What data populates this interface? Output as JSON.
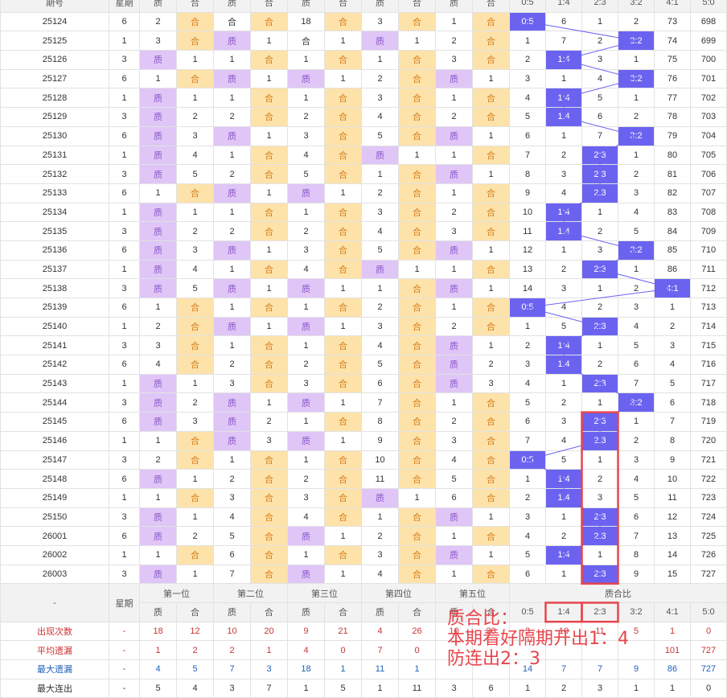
{
  "header_row": {
    "period": "期号",
    "weekday": "星期",
    "cols": [
      "质",
      "合",
      "质",
      "合",
      "质",
      "合",
      "质",
      "合",
      "质",
      "合"
    ],
    "ratios": [
      "0:5",
      "1:4",
      "2:3",
      "3:2",
      "4:1",
      "5:0"
    ]
  },
  "rows": [
    {
      "id": "25124",
      "w": "6",
      "pos": [
        "2",
        "合",
        "合",
        "合",
        "18",
        "合",
        "3",
        "合",
        "1",
        "合"
      ],
      "r": [
        "0:5",
        "6",
        "1",
        "2",
        "73",
        "698"
      ],
      "hl": 0
    },
    {
      "id": "25125",
      "w": "1",
      "pos": [
        "3",
        "合",
        "质",
        "1",
        "合",
        "1",
        "质",
        "1",
        "2",
        "合"
      ],
      "r": [
        "1",
        "7",
        "2",
        "3:2",
        "74",
        "699"
      ],
      "hl": 3
    },
    {
      "id": "25126",
      "w": "3",
      "pos": [
        "质",
        "1",
        "1",
        "合",
        "1",
        "合",
        "1",
        "合",
        "3",
        "合"
      ],
      "r": [
        "2",
        "1:4",
        "3",
        "1",
        "75",
        "700"
      ],
      "hl": 1
    },
    {
      "id": "25127",
      "w": "6",
      "pos": [
        "1",
        "合",
        "质",
        "1",
        "质",
        "1",
        "2",
        "合",
        "质",
        "1"
      ],
      "r": [
        "3",
        "1",
        "4",
        "3:2",
        "76",
        "701"
      ],
      "hl": 3
    },
    {
      "id": "25128",
      "w": "1",
      "pos": [
        "质",
        "1",
        "1",
        "合",
        "1",
        "合",
        "3",
        "合",
        "1",
        "合"
      ],
      "r": [
        "4",
        "1:4",
        "5",
        "1",
        "77",
        "702"
      ],
      "hl": 1
    },
    {
      "id": "25129",
      "w": "3",
      "pos": [
        "质",
        "2",
        "2",
        "合",
        "2",
        "合",
        "4",
        "合",
        "2",
        "合"
      ],
      "r": [
        "5",
        "1:4",
        "6",
        "2",
        "78",
        "703"
      ],
      "hl": 1
    },
    {
      "id": "25130",
      "w": "6",
      "pos": [
        "质",
        "3",
        "质",
        "1",
        "3",
        "合",
        "5",
        "合",
        "质",
        "1"
      ],
      "r": [
        "6",
        "1",
        "7",
        "3:2",
        "79",
        "704"
      ],
      "hl": 3
    },
    {
      "id": "25131",
      "w": "1",
      "pos": [
        "质",
        "4",
        "1",
        "合",
        "4",
        "合",
        "质",
        "1",
        "1",
        "合"
      ],
      "r": [
        "7",
        "2",
        "2:3",
        "1",
        "80",
        "705"
      ],
      "hl": 2
    },
    {
      "id": "25132",
      "w": "3",
      "pos": [
        "质",
        "5",
        "2",
        "合",
        "5",
        "合",
        "1",
        "合",
        "质",
        "1"
      ],
      "r": [
        "8",
        "3",
        "2:3",
        "2",
        "81",
        "706"
      ],
      "hl": 2
    },
    {
      "id": "25133",
      "w": "6",
      "pos": [
        "1",
        "合",
        "质",
        "1",
        "质",
        "1",
        "2",
        "合",
        "1",
        "合"
      ],
      "r": [
        "9",
        "4",
        "2:3",
        "3",
        "82",
        "707"
      ],
      "hl": 2
    },
    {
      "id": "25134",
      "w": "1",
      "pos": [
        "质",
        "1",
        "1",
        "合",
        "1",
        "合",
        "3",
        "合",
        "2",
        "合"
      ],
      "r": [
        "10",
        "1:4",
        "1",
        "4",
        "83",
        "708"
      ],
      "hl": 1
    },
    {
      "id": "25135",
      "w": "3",
      "pos": [
        "质",
        "2",
        "2",
        "合",
        "2",
        "合",
        "4",
        "合",
        "3",
        "合"
      ],
      "r": [
        "11",
        "1:4",
        "2",
        "5",
        "84",
        "709"
      ],
      "hl": 1
    },
    {
      "id": "25136",
      "w": "6",
      "pos": [
        "质",
        "3",
        "质",
        "1",
        "3",
        "合",
        "5",
        "合",
        "质",
        "1"
      ],
      "r": [
        "12",
        "1",
        "3",
        "3:2",
        "85",
        "710"
      ],
      "hl": 3
    },
    {
      "id": "25137",
      "w": "1",
      "pos": [
        "质",
        "4",
        "1",
        "合",
        "4",
        "合",
        "质",
        "1",
        "1",
        "合"
      ],
      "r": [
        "13",
        "2",
        "2:3",
        "1",
        "86",
        "711"
      ],
      "hl": 2
    },
    {
      "id": "25138",
      "w": "3",
      "pos": [
        "质",
        "5",
        "质",
        "1",
        "质",
        "1",
        "1",
        "合",
        "质",
        "1"
      ],
      "r": [
        "14",
        "3",
        "1",
        "2",
        "4:1",
        "712"
      ],
      "hl": 4
    },
    {
      "id": "25139",
      "w": "6",
      "pos": [
        "1",
        "合",
        "1",
        "合",
        "1",
        "合",
        "2",
        "合",
        "1",
        "合"
      ],
      "r": [
        "0:5",
        "4",
        "2",
        "3",
        "1",
        "713"
      ],
      "hl": 0
    },
    {
      "id": "25140",
      "w": "1",
      "pos": [
        "2",
        "合",
        "质",
        "1",
        "质",
        "1",
        "3",
        "合",
        "2",
        "合"
      ],
      "r": [
        "1",
        "5",
        "2:3",
        "4",
        "2",
        "714"
      ],
      "hl": 2
    },
    {
      "id": "25141",
      "w": "3",
      "pos": [
        "3",
        "合",
        "1",
        "合",
        "1",
        "合",
        "4",
        "合",
        "质",
        "1"
      ],
      "r": [
        "2",
        "1:4",
        "1",
        "5",
        "3",
        "715"
      ],
      "hl": 1
    },
    {
      "id": "25142",
      "w": "6",
      "pos": [
        "4",
        "合",
        "2",
        "合",
        "2",
        "合",
        "5",
        "合",
        "质",
        "2"
      ],
      "r": [
        "3",
        "1:4",
        "2",
        "6",
        "4",
        "716"
      ],
      "hl": 1
    },
    {
      "id": "25143",
      "w": "1",
      "pos": [
        "质",
        "1",
        "3",
        "合",
        "3",
        "合",
        "6",
        "合",
        "质",
        "3"
      ],
      "r": [
        "4",
        "1",
        "2:3",
        "7",
        "5",
        "717"
      ],
      "hl": 2
    },
    {
      "id": "25144",
      "w": "3",
      "pos": [
        "质",
        "2",
        "质",
        "1",
        "质",
        "1",
        "7",
        "合",
        "1",
        "合"
      ],
      "r": [
        "5",
        "2",
        "1",
        "3:2",
        "6",
        "718"
      ],
      "hl": 3
    },
    {
      "id": "25145",
      "w": "6",
      "pos": [
        "质",
        "3",
        "质",
        "2",
        "1",
        "合",
        "8",
        "合",
        "2",
        "合"
      ],
      "r": [
        "6",
        "3",
        "2:3",
        "1",
        "7",
        "719"
      ],
      "hl": 2
    },
    {
      "id": "25146",
      "w": "1",
      "pos": [
        "1",
        "合",
        "质",
        "3",
        "质",
        "1",
        "9",
        "合",
        "3",
        "合"
      ],
      "r": [
        "7",
        "4",
        "2:3",
        "2",
        "8",
        "720"
      ],
      "hl": 2
    },
    {
      "id": "25147",
      "w": "3",
      "pos": [
        "2",
        "合",
        "1",
        "合",
        "1",
        "合",
        "10",
        "合",
        "4",
        "合"
      ],
      "r": [
        "0:5",
        "5",
        "1",
        "3",
        "9",
        "721"
      ],
      "hl": 0
    },
    {
      "id": "25148",
      "w": "6",
      "pos": [
        "质",
        "1",
        "2",
        "合",
        "2",
        "合",
        "11",
        "合",
        "5",
        "合"
      ],
      "r": [
        "1",
        "1:4",
        "2",
        "4",
        "10",
        "722"
      ],
      "hl": 1
    },
    {
      "id": "25149",
      "w": "1",
      "pos": [
        "1",
        "合",
        "3",
        "合",
        "3",
        "合",
        "质",
        "1",
        "6",
        "合"
      ],
      "r": [
        "2",
        "1:4",
        "3",
        "5",
        "11",
        "723"
      ],
      "hl": 1
    },
    {
      "id": "25150",
      "w": "3",
      "pos": [
        "质",
        "1",
        "4",
        "合",
        "4",
        "合",
        "1",
        "合",
        "质",
        "1"
      ],
      "r": [
        "3",
        "1",
        "2:3",
        "6",
        "12",
        "724"
      ],
      "hl": 2
    },
    {
      "id": "26001",
      "w": "6",
      "pos": [
        "质",
        "2",
        "5",
        "合",
        "质",
        "1",
        "2",
        "合",
        "1",
        "合"
      ],
      "r": [
        "4",
        "2",
        "2:3",
        "7",
        "13",
        "725"
      ],
      "hl": 2
    },
    {
      "id": "26002",
      "w": "1",
      "pos": [
        "1",
        "合",
        "6",
        "合",
        "1",
        "合",
        "3",
        "合",
        "质",
        "1"
      ],
      "r": [
        "5",
        "1:4",
        "1",
        "8",
        "14",
        "726"
      ],
      "hl": 1
    },
    {
      "id": "26003",
      "w": "3",
      "pos": [
        "质",
        "1",
        "7",
        "合",
        "质",
        "1",
        "4",
        "合",
        "1",
        "合"
      ],
      "r": [
        "6",
        "1",
        "2:3",
        "9",
        "15",
        "727"
      ],
      "hl": 2
    }
  ],
  "footer_header": {
    "dash": "-",
    "weekday": "星期",
    "groups": [
      "第一位",
      "第二位",
      "第三位",
      "第四位",
      "第五位"
    ],
    "ratio_group": "质合比",
    "cols": [
      "质",
      "合",
      "质",
      "合",
      "质",
      "合",
      "质",
      "合",
      "质",
      "合"
    ],
    "ratios": [
      "0:5",
      "1:4",
      "2:3",
      "3:2",
      "4:1",
      "5:0"
    ]
  },
  "stats": [
    {
      "label": "出现次数",
      "w": "-",
      "v": [
        "18",
        "12",
        "10",
        "20",
        "9",
        "21",
        "4",
        "26",
        "10",
        "20",
        "3",
        "10",
        "11",
        "5",
        "1",
        "0"
      ]
    },
    {
      "label": "平均遗漏",
      "w": "-",
      "v": [
        "1",
        "2",
        "2",
        "1",
        "4",
        "0",
        "7",
        "0",
        "",
        "",
        "",
        "",
        "",
        "",
        "101",
        "727"
      ]
    },
    {
      "label": "最大遗漏",
      "w": "-",
      "v": [
        "4",
        "5",
        "7",
        "3",
        "18",
        "1",
        "11",
        "1",
        "",
        "",
        "14",
        "7",
        "7",
        "9",
        "86",
        "727"
      ]
    },
    {
      "label": "最大连出",
      "w": "-",
      "v": [
        "5",
        "4",
        "3",
        "7",
        "1",
        "5",
        "1",
        "11",
        "3",
        "6",
        "1",
        "2",
        "3",
        "1",
        "1",
        "0"
      ]
    }
  ],
  "annotation": {
    "line1": "质合比：",
    "line2": "本期看好隔期开出1：4",
    "line3": "防连出2：3",
    "color": "#e8454c"
  },
  "colors": {
    "prime": "#dfc6f7",
    "composite": "#fde2aa",
    "ratio": "#6b63f0",
    "box": "#e8454c"
  }
}
